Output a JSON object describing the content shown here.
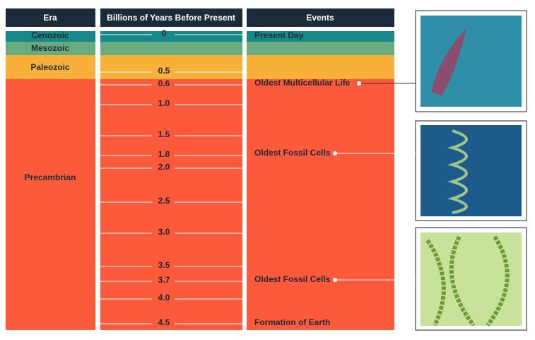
{
  "headers": {
    "era": "Era",
    "time": "Billions of Years Before Present",
    "events": "Events"
  },
  "eras": [
    "Cenozoic",
    "Mesozoic",
    "Paleozoic",
    "Precambrian"
  ],
  "times": [
    "0",
    "0.5",
    "0.6",
    "1.0",
    "1.5",
    "1.8",
    "2.0",
    "2.5",
    "3.0",
    "3.5",
    "3.7",
    "4.0",
    "4.5"
  ],
  "events": [
    "Present Day",
    "Oldest Multicellular Life",
    "Oldest Fossil Cells",
    "Oldest Fossil Cells",
    "Formation of Earth"
  ]
}
